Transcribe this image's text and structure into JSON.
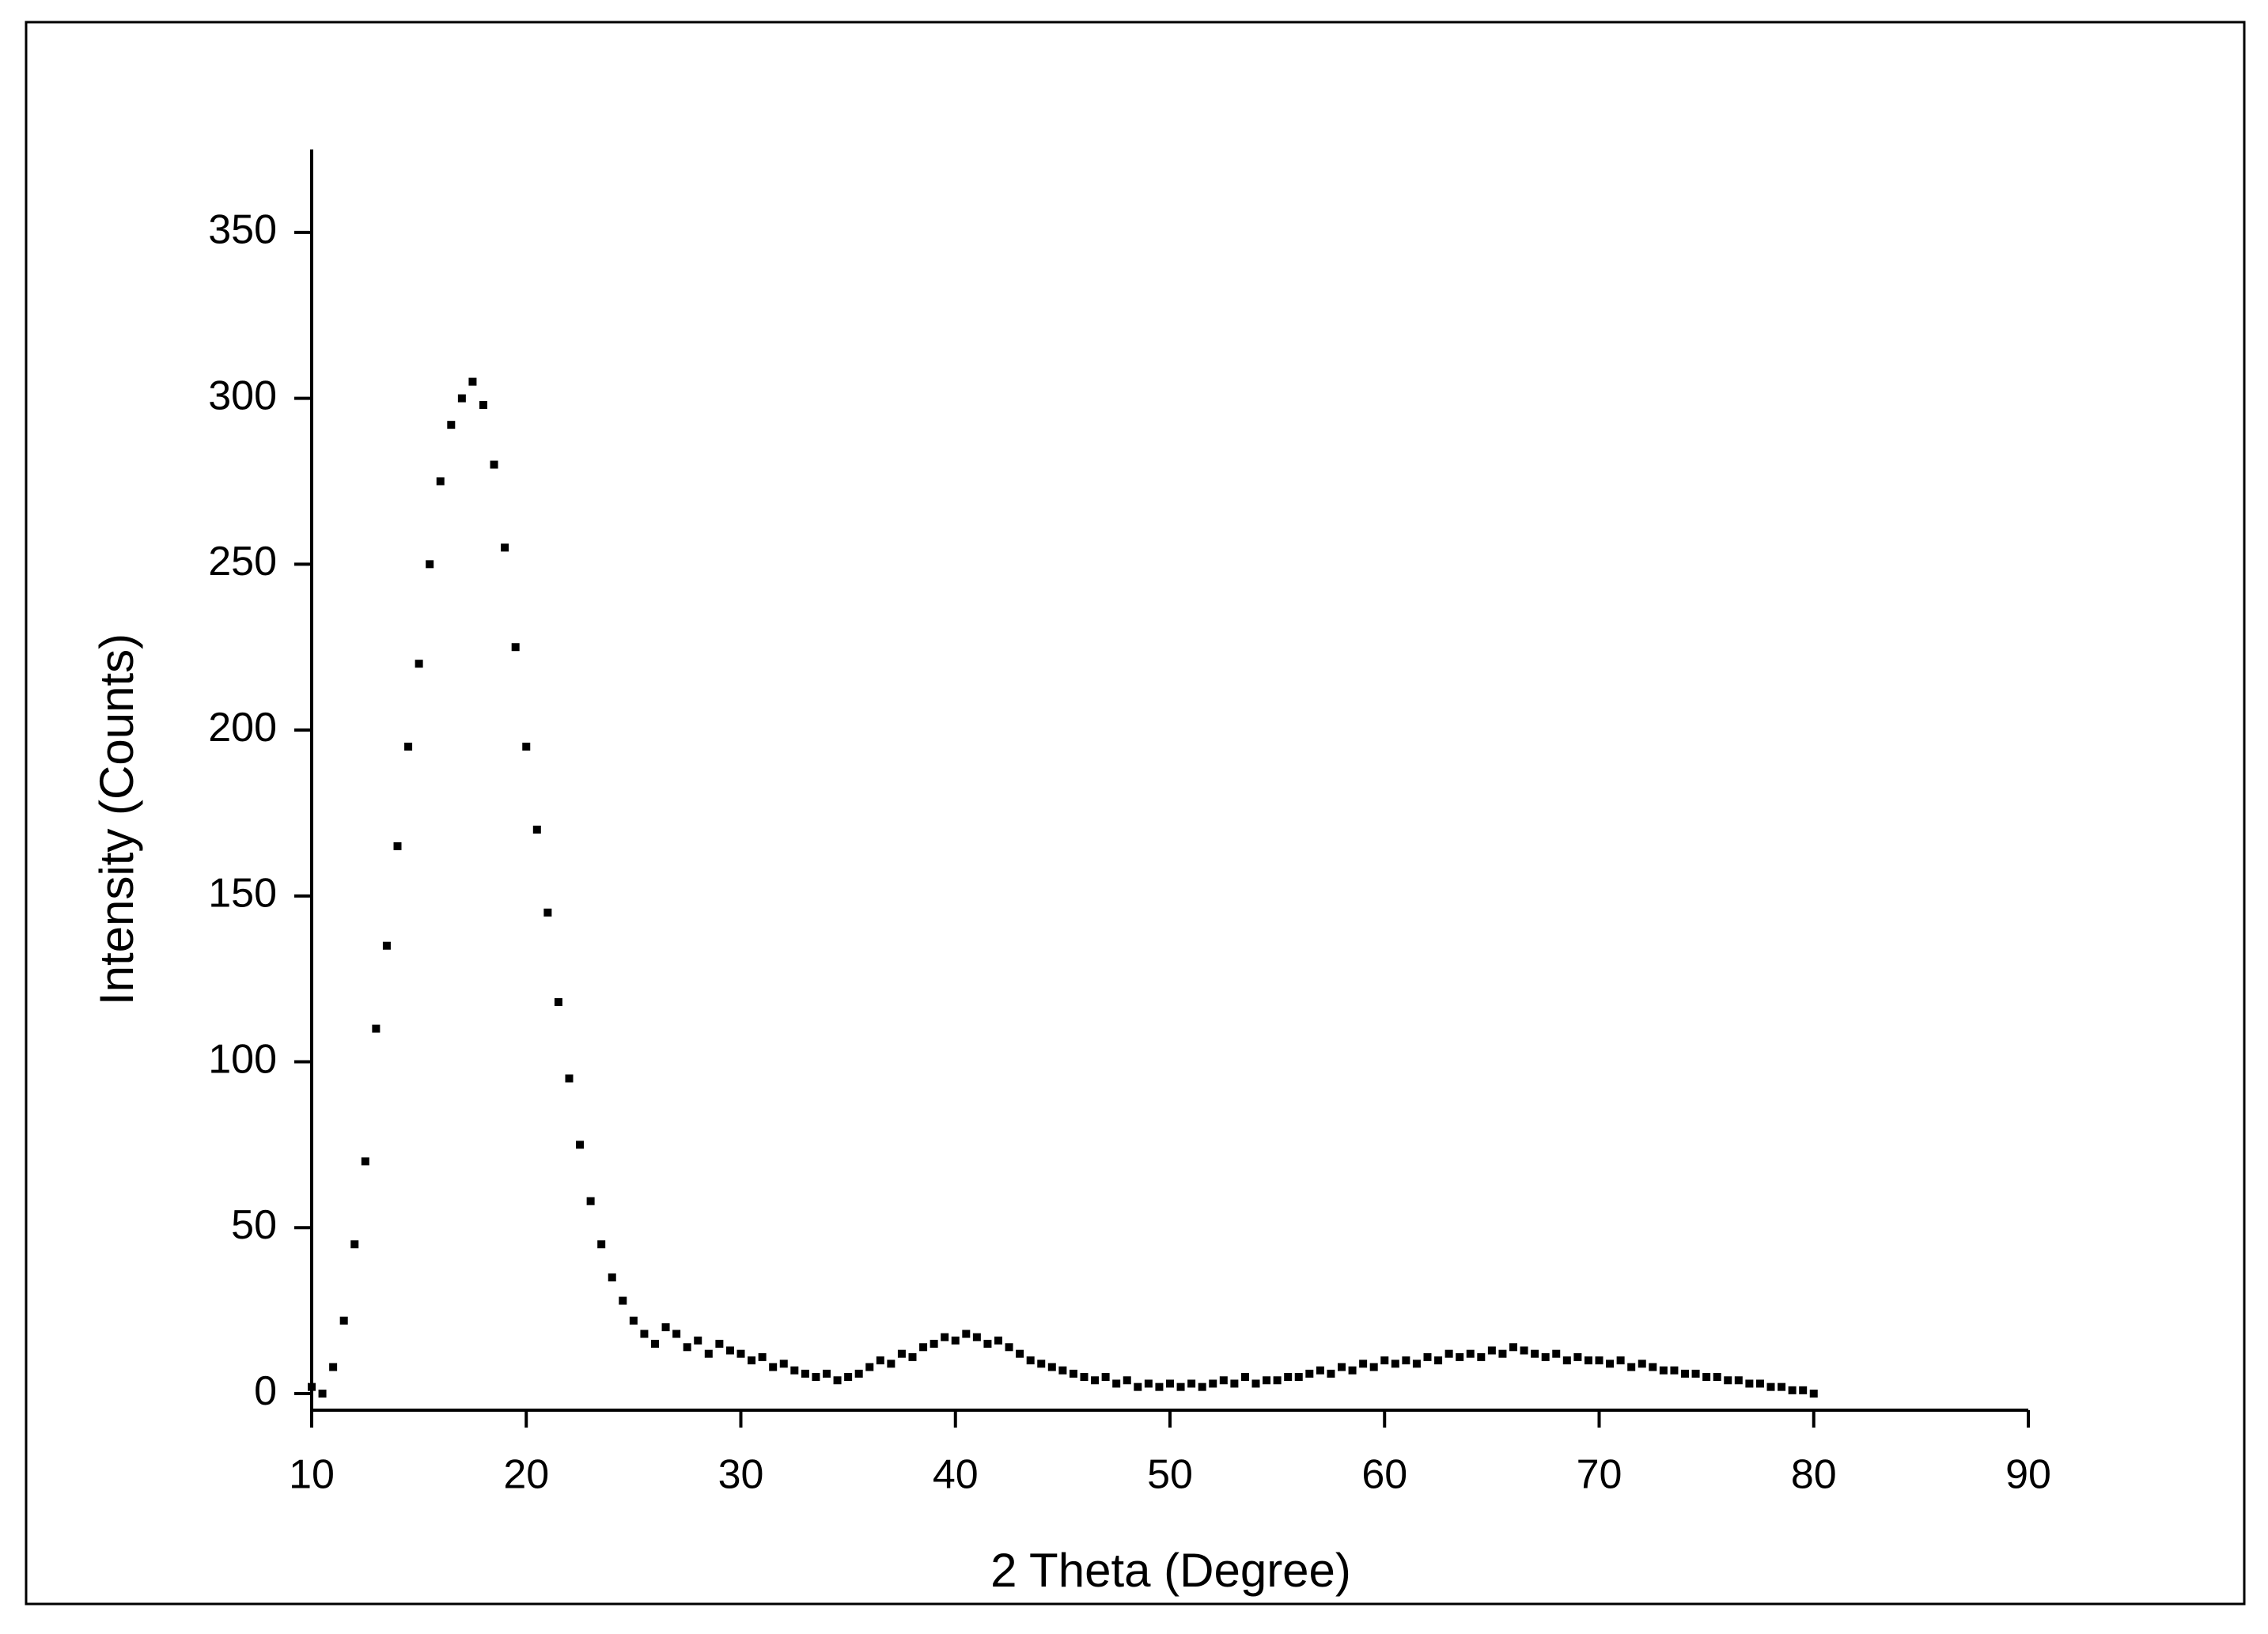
{
  "chart_data": {
    "type": "scatter",
    "x_label": "2 Theta (Degree)",
    "y_label": "Intensity (Counts)",
    "color": "#000000",
    "xlim": [
      10,
      90
    ],
    "xticks": [
      10,
      20,
      30,
      40,
      50,
      60,
      70,
      80,
      90
    ],
    "ylim": [
      -5,
      375
    ],
    "yticks": [
      0,
      50,
      100,
      150,
      200,
      250,
      300,
      350
    ],
    "x": [
      10,
      10.5,
      11,
      11.5,
      12,
      12.5,
      13,
      13.5,
      14,
      14.5,
      15,
      15.5,
      16,
      16.5,
      17,
      17.5,
      18,
      18.5,
      19,
      19.5,
      20,
      20.5,
      21,
      21.5,
      22,
      22.5,
      23,
      23.5,
      24,
      24.5,
      25,
      25.5,
      26,
      26.5,
      27,
      27.5,
      28,
      28.5,
      29,
      29.5,
      30,
      30.5,
      31,
      31.5,
      32,
      32.5,
      33,
      33.5,
      34,
      34.5,
      35,
      35.5,
      36,
      36.5,
      37,
      37.5,
      38,
      38.5,
      39,
      39.5,
      40,
      40.5,
      41,
      41.5,
      42,
      42.5,
      43,
      43.5,
      44,
      44.5,
      45,
      45.5,
      46,
      46.5,
      47,
      47.5,
      48,
      48.5,
      49,
      49.5,
      50,
      50.5,
      51,
      51.5,
      52,
      52.5,
      53,
      53.5,
      54,
      54.5,
      55,
      55.5,
      56,
      56.5,
      57,
      57.5,
      58,
      58.5,
      59,
      59.5,
      60,
      60.5,
      61,
      61.5,
      62,
      62.5,
      63,
      63.5,
      64,
      64.5,
      65,
      65.5,
      66,
      66.5,
      67,
      67.5,
      68,
      68.5,
      69,
      69.5,
      70,
      70.5,
      71,
      71.5,
      72,
      72.5,
      73,
      73.5,
      74,
      74.5,
      75,
      75.5,
      76,
      76.5,
      77,
      77.5,
      78,
      78.5,
      79,
      79.5,
      80
    ],
    "values": [
      2,
      0,
      8,
      22,
      45,
      70,
      110,
      135,
      165,
      195,
      220,
      250,
      275,
      292,
      300,
      305,
      298,
      280,
      255,
      225,
      195,
      170,
      145,
      118,
      95,
      75,
      58,
      45,
      35,
      28,
      22,
      18,
      15,
      20,
      18,
      14,
      16,
      12,
      15,
      13,
      12,
      10,
      11,
      8,
      9,
      7,
      6,
      5,
      6,
      4,
      5,
      6,
      8,
      10,
      9,
      12,
      11,
      14,
      15,
      17,
      16,
      18,
      17,
      15,
      16,
      14,
      12,
      10,
      9,
      8,
      7,
      6,
      5,
      4,
      5,
      3,
      4,
      2,
      3,
      2,
      3,
      2,
      3,
      2,
      3,
      4,
      3,
      5,
      3,
      4,
      4,
      5,
      5,
      6,
      7,
      6,
      8,
      7,
      9,
      8,
      10,
      9,
      10,
      9,
      11,
      10,
      12,
      11,
      12,
      11,
      13,
      12,
      14,
      13,
      12,
      11,
      12,
      10,
      11,
      10,
      10,
      9,
      10,
      8,
      9,
      8,
      7,
      7,
      6,
      6,
      5,
      5,
      4,
      4,
      3,
      3,
      2,
      2,
      1,
      1,
      0
    ]
  }
}
